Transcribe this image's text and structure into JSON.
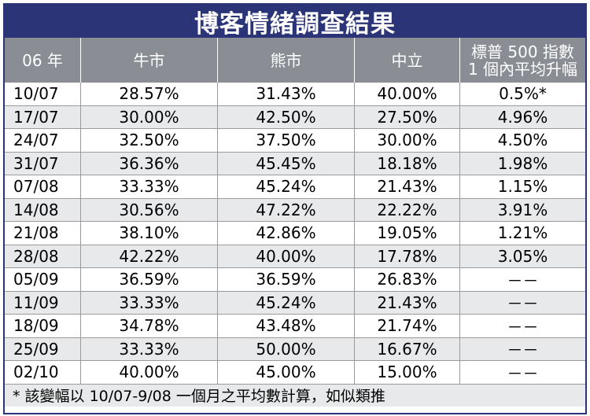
{
  "title": "博客情緒調查結果",
  "columns": [
    "06 年",
    "牛市",
    "熊市",
    "中立",
    "標普 500 指數",
    "1 個內平均升幅"
  ],
  "rows": [
    {
      "date": "10/07",
      "bull": "28.57%",
      "bear": "31.43%",
      "neutral": "40.00%",
      "sp": "0.5%*"
    },
    {
      "date": "17/07",
      "bull": "30.00%",
      "bear": "42.50%",
      "neutral": "27.50%",
      "sp": "4.96%"
    },
    {
      "date": "24/07",
      "bull": "32.50%",
      "bear": "37.50%",
      "neutral": "30.00%",
      "sp": "4.50%"
    },
    {
      "date": "31/07",
      "bull": "36.36%",
      "bear": "45.45%",
      "neutral": "18.18%",
      "sp": "1.98%"
    },
    {
      "date": "07/08",
      "bull": "33.33%",
      "bear": "45.24%",
      "neutral": "21.43%",
      "sp": "1.15%"
    },
    {
      "date": "14/08",
      "bull": "30.56%",
      "bear": "47.22%",
      "neutral": "22.22%",
      "sp": "3.91%"
    },
    {
      "date": "21/08",
      "bull": "38.10%",
      "bear": "42.86%",
      "neutral": "19.05%",
      "sp": "1.21%"
    },
    {
      "date": "28/08",
      "bull": "42.22%",
      "bear": "40.00%",
      "neutral": "17.78%",
      "sp": "3.05%"
    },
    {
      "date": "05/09",
      "bull": "36.59%",
      "bear": "36.59%",
      "neutral": "26.83%",
      "sp": "－－"
    },
    {
      "date": "11/09",
      "bull": "33.33%",
      "bear": "45.24%",
      "neutral": "21.43%",
      "sp": "－－"
    },
    {
      "date": "18/09",
      "bull": "34.78%",
      "bear": "43.48%",
      "neutral": "21.74%",
      "sp": "－－"
    },
    {
      "date": "25/09",
      "bull": "33.33%",
      "bear": "50.00%",
      "neutral": "16.67%",
      "sp": "－－"
    },
    {
      "date": "02/10",
      "bull": "40.00%",
      "bear": "45.00%",
      "neutral": "15.00%",
      "sp": "－－"
    }
  ],
  "footnote": "* 該變幅以 10/07-9/08 一個月之平均數計算，如似類推",
  "colors": {
    "frame": "#2b3477",
    "header_bg": "#8a8d93",
    "alt_row_bg": "#e8e9ea"
  }
}
